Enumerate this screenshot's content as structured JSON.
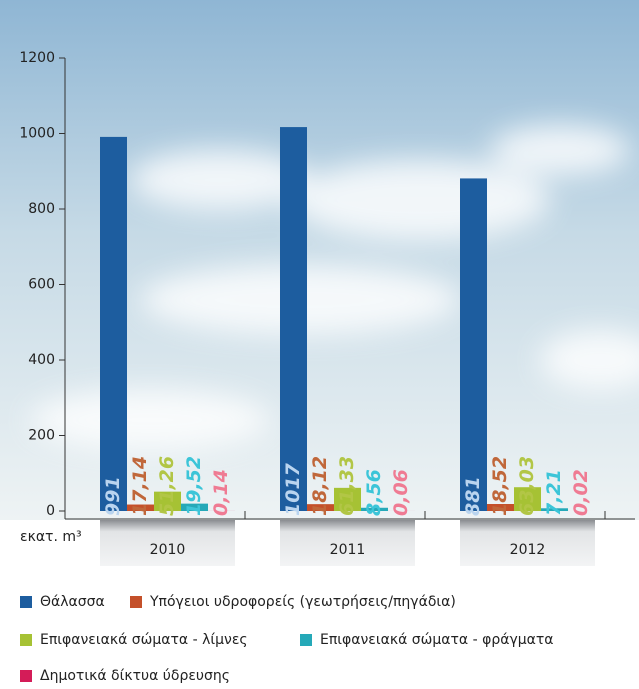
{
  "chart_data": {
    "type": "bar",
    "y_axis_label": "εκατ. m³",
    "categories": [
      "2010",
      "2011",
      "2012"
    ],
    "series": [
      {
        "name": "Θάλασσα",
        "color": "#1d5d9f",
        "label_color": "#b9d4ef",
        "values": [
          991,
          1017,
          881
        ]
      },
      {
        "name": "Υπόγειοι υδροφορείς (γεωτρήσεις/πηγάδια)",
        "color": "#c4502a",
        "label_color": "#c0673a",
        "values": [
          17.14,
          18.12,
          18.52
        ],
        "value_labels": [
          "17,14",
          "18,12",
          "18,52"
        ]
      },
      {
        "name": "Επιφανειακά σώματα - λίμνες",
        "color": "#a6c234",
        "label_color": "#b2c646",
        "values": [
          51.26,
          61.33,
          63.03
        ],
        "value_labels": [
          "51,26",
          "61,33",
          "63,03"
        ]
      },
      {
        "name": "Επιφανειακά σώματα - φράγματα",
        "color": "#25a9b8",
        "label_color": "#3cc5d8",
        "values": [
          19.52,
          8.56,
          7.21
        ],
        "value_labels": [
          "19,52",
          "8,56",
          "7,21"
        ]
      },
      {
        "name": "Δημοτικά δίκτυα ύδρευσης",
        "color": "#d41c58",
        "label_color": "#ef7b93",
        "values": [
          0.14,
          0.06,
          0.02
        ],
        "value_labels": [
          "0,14",
          "0,06",
          "0,02"
        ]
      }
    ],
    "ylim": [
      0,
      1200
    ],
    "yticks": [
      0,
      200,
      400,
      600,
      800,
      1000,
      1200
    ]
  }
}
